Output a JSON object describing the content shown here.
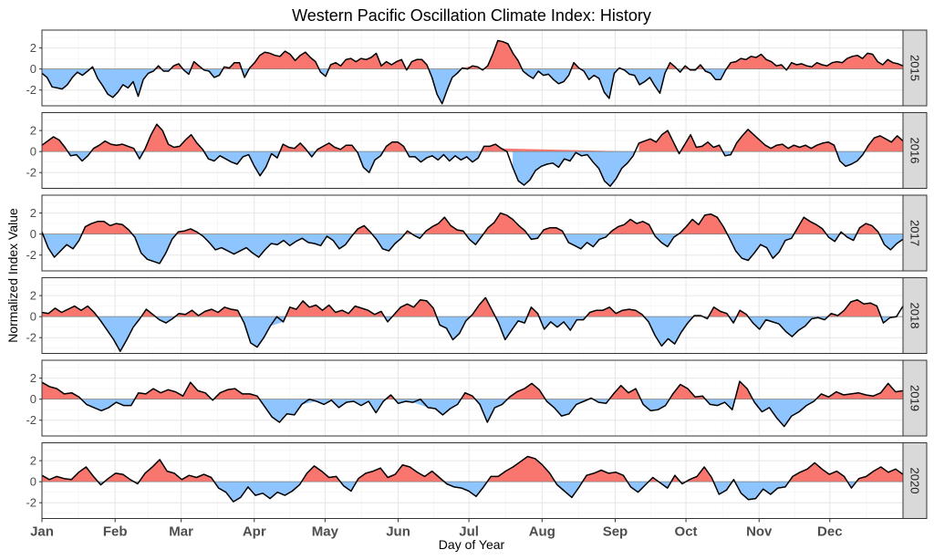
{
  "chart_data": {
    "type": "area",
    "title": "Western Pacific Oscillation Climate Index: History",
    "xlabel": "Day of Year",
    "ylabel": "Normalized Index Value",
    "x_ticks": [
      "Jan",
      "Feb",
      "Mar",
      "Apr",
      "May",
      "Jun",
      "Jul",
      "Aug",
      "Sep",
      "Oct",
      "Nov",
      "Dec"
    ],
    "x_tick_days": [
      1,
      32,
      60,
      91,
      121,
      152,
      182,
      213,
      244,
      274,
      305,
      335
    ],
    "xlim": [
      1,
      366
    ],
    "y_ticks": [
      2,
      0,
      -2
    ],
    "ylim": [
      -3.5,
      3.7
    ],
    "panels_facet": "year",
    "positive_color": "#f8766d",
    "negative_color": "#8ec5ff",
    "line_color": "#000000",
    "panel_border_color": "#333333",
    "strip_fill": "#d9d9d9",
    "series": [
      {
        "name": "2015",
        "values": [
          -0.4,
          -0.8,
          -1.7,
          -1.8,
          -1.9,
          -1.5,
          -0.8,
          -0.3,
          -0.6,
          -0.2,
          0.2,
          -0.9,
          -1.6,
          -2.4,
          -2.7,
          -2.2,
          -1.5,
          -1.8,
          -1.2,
          -2.6,
          -1.0,
          -0.4,
          -0.2,
          0.3,
          -0.2,
          -0.2,
          0.3,
          0.5,
          -0.1,
          -0.5,
          0.7,
          0.3,
          -0.1,
          -0.2,
          -0.8,
          -0.6,
          0.2,
          0.1,
          0.6,
          0.6,
          -0.8,
          0.1,
          0.6,
          1.3,
          1.6,
          1.5,
          1.3,
          1.2,
          1.7,
          1.4,
          0.8,
          1.3,
          1.6,
          1.1,
          0.7,
          -0.3,
          -0.7,
          0.4,
          0.6,
          0.3,
          0.9,
          1.0,
          0.7,
          1.0,
          0.9,
          1.1,
          1.5,
          0.3,
          0.7,
          0.4,
          0.7,
          0.9,
          -0.1,
          0.7,
          0.9,
          0.9,
          0.4,
          -0.8,
          -2.4,
          -3.3,
          -2.0,
          -0.8,
          -0.4,
          0.1,
          0.0,
          0.3,
          0.2,
          -0.1,
          0.3,
          1.4,
          2.7,
          2.6,
          2.4,
          1.5,
          0.8,
          -0.2,
          -0.6,
          -0.9,
          -0.2,
          -0.6,
          -0.5,
          -1.0,
          -1.4,
          -1.2,
          -0.6,
          0.6,
          0.1,
          -0.2,
          -1.0,
          -0.6,
          -0.9,
          -2.2,
          -2.8,
          -0.4,
          0.1,
          -0.1,
          -0.5,
          -0.6,
          -1.5,
          -1.2,
          -0.8,
          -1.6,
          -2.3,
          -0.4,
          0.6,
          0.2,
          -0.3,
          0.3,
          -0.1,
          -0.1,
          0.4,
          -0.2,
          -0.4,
          -1.0,
          -1.0,
          -0.1,
          0.6,
          0.7,
          1.0,
          0.9,
          1.2,
          1.1,
          1.4,
          0.9,
          0.7,
          0.3,
          0.4,
          -0.1,
          0.6,
          0.4,
          0.5,
          0.3,
          0.2,
          0.6,
          0.4,
          0.3,
          0.6,
          0.7,
          0.6,
          1.0,
          1.2,
          1.3,
          1.0,
          1.5,
          1.4,
          0.7,
          0.4,
          0.9,
          0.6,
          0.5,
          0.3
        ]
      },
      {
        "name": "2016",
        "values": [
          0.6,
          1.0,
          1.4,
          1.1,
          0.4,
          -0.4,
          -0.3,
          -0.9,
          -0.4,
          0.3,
          0.6,
          1.0,
          0.7,
          0.6,
          0.7,
          0.5,
          0.3,
          -0.7,
          0.3,
          1.6,
          2.6,
          2.0,
          0.7,
          0.4,
          0.5,
          1.1,
          1.6,
          0.8,
          0.2,
          -0.7,
          -0.9,
          -0.4,
          -0.7,
          -1.0,
          -1.2,
          -0.5,
          -0.3,
          -1.4,
          -2.3,
          -1.5,
          -0.2,
          -0.6,
          0.7,
          0.4,
          0.3,
          0.8,
          0.2,
          -0.5,
          0.2,
          0.5,
          0.8,
          0.4,
          0.2,
          0.6,
          0.6,
          -0.1,
          -1.5,
          -2.0,
          -0.8,
          -0.4,
          0.5,
          0.9,
          0.9,
          0.5,
          -0.5,
          -0.5,
          -1.0,
          -0.6,
          -0.4,
          -0.8,
          -0.3,
          -0.9,
          -0.4,
          -0.8,
          -0.5,
          -1.0,
          -0.6,
          0.5,
          0.5,
          0.7,
          0.3,
          0.0,
          -1.5,
          -2.8,
          -3.2,
          -2.7,
          -1.8,
          -1.4,
          -1.2,
          -1.1,
          -1.5,
          -0.7,
          -0.9,
          -0.1,
          -0.4,
          -0.3,
          -1.0,
          -1.6,
          -2.8,
          -3.3,
          -2.6,
          -1.6,
          -1.1,
          -0.4,
          0.8,
          1.0,
          1.2,
          0.9,
          1.6,
          2.0,
          0.9,
          -0.2,
          0.7,
          1.6,
          0.4,
          0.5,
          0.9,
          0.4,
          0.6,
          -0.4,
          -0.3,
          0.8,
          1.5,
          2.1,
          1.6,
          1.1,
          0.6,
          0.3,
          0.6,
          0.7,
          0.3,
          0.6,
          0.4,
          0.6,
          0.3,
          0.6,
          0.8,
          0.9,
          0.6,
          -0.9,
          -1.4,
          -1.2,
          -0.9,
          -0.3,
          0.6,
          1.3,
          1.5,
          1.2,
          0.9,
          1.5,
          1.0
        ]
      },
      {
        "name": "2017",
        "values": [
          0.2,
          -1.3,
          -2.2,
          -1.6,
          -1.0,
          -1.4,
          -0.6,
          0.7,
          1.0,
          1.2,
          1.2,
          0.8,
          1.0,
          0.9,
          0.4,
          -0.3,
          -1.8,
          -2.4,
          -2.6,
          -2.8,
          -1.8,
          -0.5,
          0.2,
          0.3,
          0.5,
          0.2,
          -0.2,
          -0.8,
          -1.5,
          -1.3,
          -1.6,
          -1.9,
          -1.6,
          -1.3,
          -1.8,
          -2.2,
          -1.5,
          -0.9,
          -1.0,
          -0.6,
          -1.1,
          -0.7,
          -0.4,
          -0.8,
          -0.9,
          -1.1,
          -0.2,
          -0.6,
          -1.4,
          -1.0,
          -0.2,
          0.5,
          0.8,
          0.2,
          -0.5,
          -1.4,
          -1.6,
          -0.9,
          -0.4,
          0.3,
          -0.1,
          -0.4,
          0.3,
          0.7,
          1.0,
          1.6,
          0.8,
          0.4,
          0.3,
          -0.5,
          -1.0,
          -0.2,
          0.6,
          1.1,
          2.0,
          1.8,
          1.4,
          0.8,
          0.3,
          -0.5,
          -0.4,
          0.4,
          0.6,
          0.6,
          0.3,
          -0.8,
          -1.1,
          -1.4,
          -0.8,
          -1.2,
          -0.5,
          -0.3,
          0.3,
          0.7,
          0.9,
          1.4,
          1.0,
          1.2,
          0.9,
          -0.2,
          -0.8,
          -1.2,
          -0.3,
          0.1,
          0.7,
          1.4,
          0.9,
          1.8,
          1.9,
          1.6,
          0.7,
          -0.4,
          -1.6,
          -2.3,
          -2.5,
          -1.8,
          -1.0,
          -1.3,
          -2.3,
          -1.7,
          -0.6,
          -0.4,
          0.6,
          1.6,
          1.2,
          0.9,
          0.5,
          -0.3,
          -0.7,
          0.2,
          -0.3,
          -0.6,
          0.6,
          1.0,
          0.8,
          0.2,
          -1.0,
          -1.5,
          -0.9,
          -0.5
        ]
      },
      {
        "name": "2018",
        "values": [
          0.4,
          0.3,
          0.8,
          0.4,
          0.7,
          1.0,
          0.6,
          1.0,
          0.4,
          -0.4,
          -1.3,
          -2.2,
          -3.3,
          -2.2,
          -1.0,
          -0.2,
          0.7,
          0.2,
          -0.3,
          -0.6,
          -0.2,
          0.3,
          0.2,
          0.6,
          0.1,
          0.5,
          0.7,
          0.4,
          0.9,
          0.7,
          0.6,
          -0.6,
          -2.5,
          -2.9,
          -2.0,
          -0.9,
          0.0,
          -0.5,
          0.9,
          0.7,
          1.5,
          0.9,
          1.1,
          0.6,
          1.1,
          0.4,
          0.6,
          0.3,
          1.0,
          0.8,
          0.6,
          0.2,
          0.5,
          -0.5,
          0.2,
          0.9,
          1.2,
          0.9,
          1.6,
          1.5,
          0.8,
          -0.8,
          -1.1,
          -2.2,
          -1.6,
          -0.4,
          0.2,
          1.1,
          1.8,
          0.6,
          -0.6,
          -2.2,
          -1.3,
          -0.4,
          -0.6,
          0.9,
          0.3,
          -1.2,
          -0.5,
          -1.0,
          -0.5,
          -1.3,
          -0.3,
          -0.3,
          0.4,
          0.6,
          0.6,
          0.9,
          0.3,
          0.6,
          0.7,
          0.6,
          0.2,
          -0.5,
          -1.8,
          -2.8,
          -2.1,
          -2.6,
          -1.5,
          -0.6,
          0.1,
          0.1,
          -0.2,
          0.9,
          0.5,
          0.3,
          -0.6,
          0.6,
          0.2,
          -0.6,
          -1.2,
          -0.3,
          -0.5,
          -0.7,
          -1.4,
          -1.9,
          -1.3,
          -0.9,
          -0.2,
          -0.1,
          -0.3,
          0.3,
          0.1,
          0.6,
          1.4,
          1.6,
          1.2,
          1.3,
          1.0,
          -0.6,
          -0.1,
          0.0,
          1.0
        ]
      },
      {
        "name": "2019",
        "values": [
          1.6,
          1.2,
          1.0,
          0.5,
          0.6,
          0.2,
          -0.5,
          -0.8,
          -1.1,
          -0.8,
          -0.3,
          -0.6,
          -0.6,
          0.6,
          0.5,
          1.0,
          0.6,
          0.9,
          0.7,
          0.3,
          1.6,
          0.8,
          0.6,
          -0.1,
          0.6,
          0.9,
          1.0,
          0.5,
          0.5,
          0.3,
          -0.7,
          -1.7,
          -2.2,
          -1.4,
          -1.5,
          -0.5,
          0.0,
          -0.2,
          -0.5,
          -0.1,
          -0.8,
          -0.3,
          -0.2,
          -0.6,
          -0.2,
          -1.3,
          -0.2,
          0.4,
          -0.4,
          -0.2,
          -0.3,
          0.0,
          -0.8,
          -0.9,
          -1.5,
          -0.9,
          -0.5,
          0.6,
          0.3,
          -0.5,
          -2.2,
          -0.8,
          -0.5,
          0.2,
          0.7,
          1.0,
          1.5,
          0.9,
          -0.2,
          -0.8,
          -1.6,
          -1.4,
          -0.5,
          -0.2,
          0.1,
          -0.3,
          -0.4,
          0.5,
          1.3,
          0.6,
          1.0,
          -0.5,
          -1.1,
          -1.0,
          -0.6,
          0.5,
          1.4,
          1.0,
          0.2,
          0.3,
          -0.5,
          -0.6,
          -0.3,
          -1.0,
          1.7,
          1.0,
          -0.3,
          -1.2,
          -0.8,
          -1.8,
          -2.6,
          -1.6,
          -1.2,
          -0.6,
          -0.2,
          0.5,
          0.2,
          0.7,
          0.4,
          0.5,
          0.6,
          0.4,
          0.3,
          0.6,
          1.5,
          0.7,
          0.8
        ]
      },
      {
        "name": "2020",
        "values": [
          0.6,
          0.2,
          0.5,
          0.3,
          0.2,
          0.9,
          1.4,
          0.5,
          -0.3,
          0.3,
          0.8,
          0.7,
          0.2,
          -0.2,
          0.8,
          1.4,
          2.1,
          1.0,
          0.8,
          0.2,
          0.6,
          0.4,
          0.7,
          0.4,
          -0.6,
          -1.0,
          -1.9,
          -1.5,
          -0.5,
          -1.3,
          -1.1,
          -1.6,
          -1.0,
          -1.3,
          -0.9,
          -0.3,
          0.8,
          1.5,
          1.0,
          0.4,
          0.5,
          -0.4,
          -0.9,
          0.3,
          0.8,
          1.0,
          1.3,
          0.4,
          0.7,
          1.6,
          1.4,
          0.9,
          0.5,
          1.0,
          0.4,
          -0.2,
          -0.5,
          -0.6,
          -0.9,
          -1.4,
          -0.5,
          0.5,
          0.5,
          1.0,
          1.4,
          1.9,
          2.4,
          2.2,
          1.6,
          0.8,
          -0.3,
          -0.9,
          -1.5,
          -0.5,
          0.6,
          0.8,
          1.1,
          0.8,
          0.9,
          0.6,
          -0.5,
          -1.0,
          -0.3,
          0.4,
          -0.1,
          -0.6,
          0.6,
          -0.2,
          0.2,
          0.5,
          1.4,
          0.4,
          -1.2,
          -0.8,
          0.2,
          -1.1,
          -1.7,
          -1.6,
          -0.7,
          -1.2,
          -0.6,
          -0.5,
          0.5,
          0.9,
          1.2,
          1.8,
          1.2,
          0.7,
          1.0,
          0.5,
          -0.6,
          0.3,
          0.5,
          1.0,
          1.4,
          0.9,
          1.2,
          0.7
        ]
      }
    ]
  }
}
